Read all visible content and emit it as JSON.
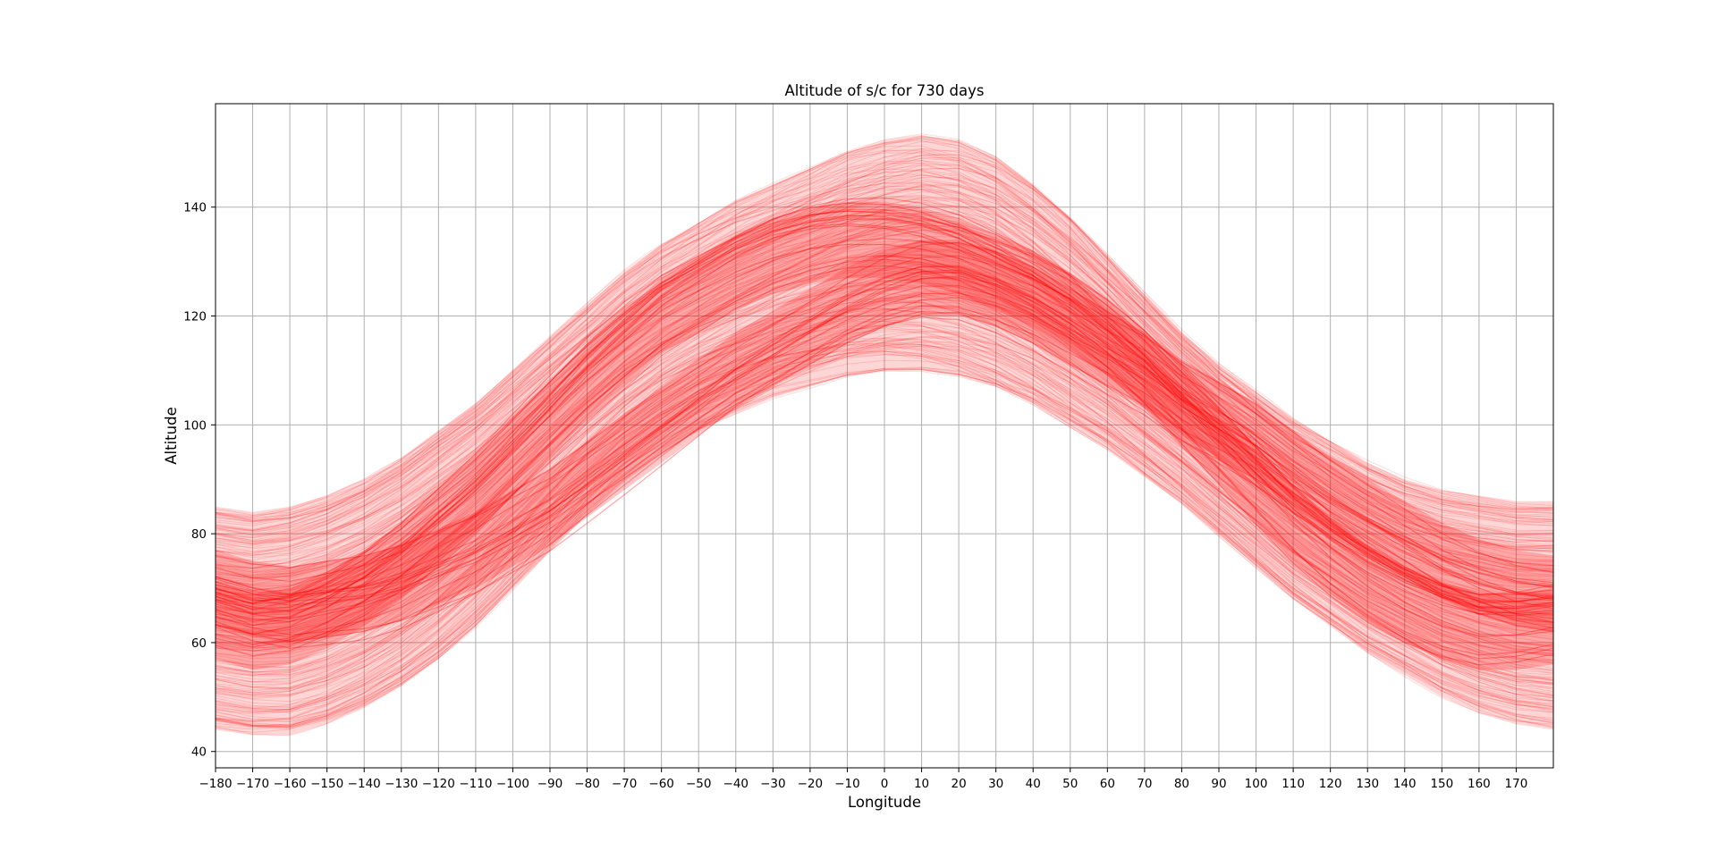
{
  "chart_data": {
    "type": "line",
    "title": "Altitude of s/c for 730 days",
    "xlabel": "Longitude",
    "ylabel": "Altitude",
    "xlim": [
      -180,
      180
    ],
    "ylim": [
      37,
      159
    ],
    "xticks": [
      -180,
      -170,
      -160,
      -150,
      -140,
      -130,
      -120,
      -110,
      -100,
      -90,
      -80,
      -70,
      -60,
      -50,
      -40,
      -30,
      -20,
      -10,
      0,
      10,
      20,
      30,
      40,
      50,
      60,
      70,
      80,
      90,
      100,
      110,
      120,
      130,
      140,
      150,
      160,
      170
    ],
    "yticks": [
      40,
      60,
      80,
      100,
      120,
      140
    ],
    "grid": true,
    "legend": "none",
    "series_color": "#ff0000",
    "series_count": 730,
    "envelope": {
      "x": [
        -180,
        -170,
        -160,
        -150,
        -140,
        -130,
        -120,
        -110,
        -100,
        -90,
        -80,
        -70,
        -60,
        -50,
        -40,
        -30,
        -20,
        -10,
        0,
        10,
        20,
        30,
        40,
        50,
        60,
        70,
        80,
        90,
        100,
        110,
        120,
        130,
        140,
        150,
        160,
        170,
        180
      ],
      "upper": [
        85,
        84,
        85,
        87,
        90,
        94,
        99,
        104,
        110,
        116,
        122,
        128,
        133,
        137,
        141,
        144,
        147,
        150,
        152,
        153,
        152,
        149,
        144,
        138,
        131,
        124,
        117,
        111,
        106,
        101,
        97,
        93,
        90,
        88,
        87,
        86,
        86
      ],
      "lower": [
        44,
        43,
        43,
        45,
        48,
        52,
        57,
        63,
        70,
        77,
        84,
        90,
        95,
        99,
        102,
        105,
        107,
        109,
        110,
        110,
        109,
        107,
        104,
        100,
        96,
        91,
        86,
        80,
        74,
        68,
        63,
        58,
        54,
        50,
        47,
        45,
        44
      ]
    },
    "dense_bands": [
      {
        "name": "",
        "x": [
          -180,
          -170,
          -160,
          -150,
          -140,
          -130,
          -120,
          -110,
          -100,
          -90,
          -80,
          -70,
          -60,
          -50,
          -40,
          -30,
          -20,
          -10,
          0,
          10,
          20,
          30,
          40,
          50,
          60,
          70,
          80,
          90,
          100,
          110,
          120,
          130,
          140,
          150,
          160,
          170,
          180
        ],
        "center": [
          64,
          62,
          63,
          66,
          70,
          75,
          81,
          87,
          94,
          101,
          108,
          114,
          120,
          124,
          128,
          131,
          133,
          134,
          134,
          133,
          131,
          128,
          125,
          121,
          116,
          110,
          103,
          96,
          89,
          82,
          76,
          71,
          67,
          64,
          62,
          62,
          63
        ]
      },
      {
        "name": "",
        "x": [
          -180,
          -170,
          -160,
          -150,
          -140,
          -130,
          -120,
          -110,
          -100,
          -90,
          -80,
          -70,
          -60,
          -50,
          -40,
          -30,
          -20,
          -10,
          0,
          10,
          20,
          30,
          40,
          50,
          60,
          70,
          80,
          90,
          100,
          110,
          120,
          130,
          140,
          150,
          160,
          170,
          180
        ],
        "center": [
          70,
          68,
          67,
          68,
          69,
          71,
          74,
          77,
          81,
          85,
          90,
          95,
          100,
          105,
          110,
          114,
          118,
          122,
          125,
          127,
          127,
          125,
          122,
          118,
          114,
          110,
          105,
          101,
          97,
          92,
          87,
          83,
          79,
          75,
          72,
          70,
          69
        ]
      }
    ]
  }
}
